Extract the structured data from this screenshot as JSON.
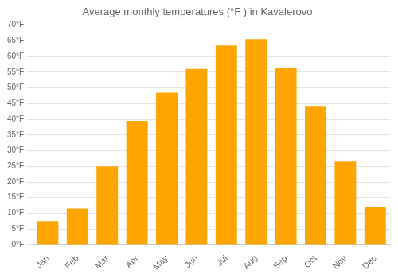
{
  "chart_data": {
    "type": "bar",
    "title": "Average monthly temperatures (°F ) in Kavalerovo",
    "categories": [
      "Jan",
      "Feb",
      "Mar",
      "Apr",
      "May",
      "Jun",
      "Jul",
      "Aug",
      "Sep",
      "Oct",
      "Nov",
      "Dec"
    ],
    "values": [
      7.5,
      11.5,
      25.0,
      39.5,
      48.5,
      56.0,
      63.5,
      65.5,
      56.5,
      44.0,
      26.5,
      12.0
    ],
    "color": "#FFA500",
    "ylim": [
      0,
      70
    ],
    "yticks": [
      {
        "value": 0,
        "label": "0°F"
      },
      {
        "value": 5,
        "label": "5°F"
      },
      {
        "value": 10,
        "label": "10°F"
      },
      {
        "value": 15,
        "label": "15°F"
      },
      {
        "value": 20,
        "label": "20°F"
      },
      {
        "value": 25,
        "label": "25°F"
      },
      {
        "value": 30,
        "label": "30°F"
      },
      {
        "value": 35,
        "label": "35°F"
      },
      {
        "value": 40,
        "label": "40°F"
      },
      {
        "value": 45,
        "label": "45°F"
      },
      {
        "value": 50,
        "label": "50°F"
      },
      {
        "value": 55,
        "label": "55°F"
      },
      {
        "value": 60,
        "label": "60°F"
      },
      {
        "value": 65,
        "label": "65°F"
      },
      {
        "value": 70,
        "label": "70°F"
      }
    ],
    "grid": true
  }
}
